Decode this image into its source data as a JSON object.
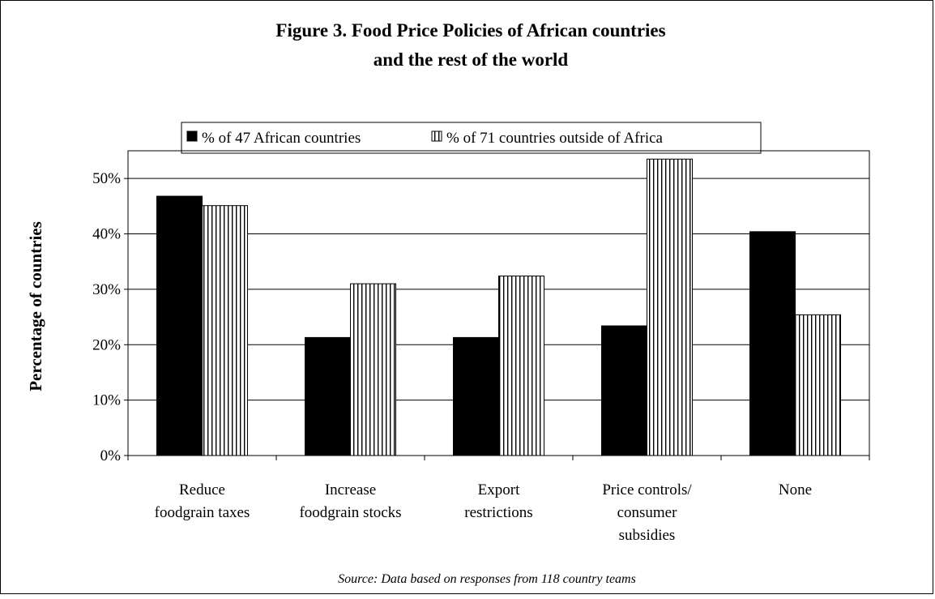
{
  "chart_data": {
    "type": "bar",
    "title_line1": "Figure 3. Food Price Policies of African countries",
    "title_line2": "and the rest of the world",
    "ylabel": "Percentage of countries",
    "xlabel": "",
    "source": "Source: Data based on responses from 118 country teams",
    "categories": [
      [
        "Reduce",
        "foodgrain taxes"
      ],
      [
        "Increase",
        "foodgrain stocks"
      ],
      [
        "Export",
        "restrictions"
      ],
      [
        "Price controls/",
        "consumer",
        "subsidies"
      ],
      [
        "None"
      ]
    ],
    "series": [
      {
        "name": "% of 47 African countries",
        "values": [
          46.8,
          21.3,
          21.3,
          23.4,
          40.4
        ],
        "fill": "solid",
        "color": "#000000"
      },
      {
        "name": "% of 71 countries outside of Africa",
        "values": [
          45.1,
          31.0,
          32.4,
          53.5,
          25.4
        ],
        "fill": "vertical-stripes",
        "color": "#000000"
      }
    ],
    "ylim": [
      0,
      55
    ],
    "yticks": [
      0,
      10,
      20,
      30,
      40,
      50
    ],
    "ytick_labels": [
      "0%",
      "10%",
      "20%",
      "30%",
      "40%",
      "50%"
    ],
    "grid": "horizontal",
    "legend_position": "top-center"
  }
}
